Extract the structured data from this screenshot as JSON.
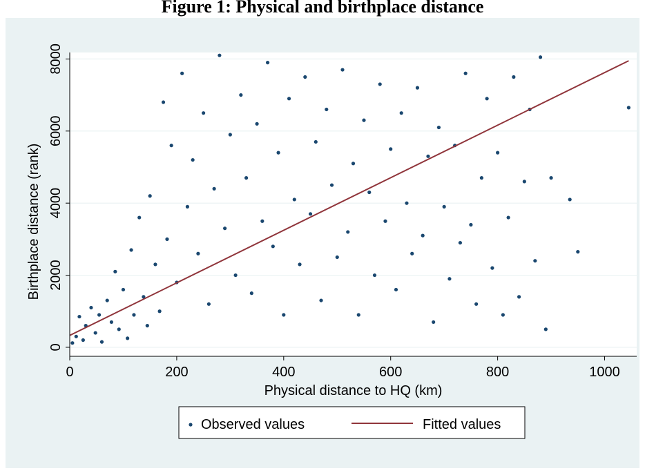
{
  "title": "Figure 1: Physical and birthplace distance",
  "chart_data": {
    "type": "scatter",
    "xlabel": "Physical distance to HQ (km)",
    "ylabel": "Birthplace distance (rank)",
    "xlim": [
      0,
      1060
    ],
    "ylim": [
      -250,
      8180
    ],
    "xticks": [
      0,
      200,
      400,
      600,
      800,
      1000
    ],
    "yticks": [
      0,
      2000,
      4000,
      6000,
      8000
    ],
    "x_tick_labels": [
      "0",
      "200",
      "400",
      "600",
      "800",
      "1000"
    ],
    "y_tick_labels": [
      "0",
      "2000",
      "4000",
      "6000",
      "8000"
    ],
    "grid": "horizontal",
    "legend_position": "bottom",
    "series": [
      {
        "name": "Observed values",
        "kind": "scatter",
        "color": "#1a476f",
        "note_points": "representative sample of a dense cloud of observations",
        "points": [
          [
            5,
            120
          ],
          [
            12,
            300
          ],
          [
            18,
            850
          ],
          [
            25,
            200
          ],
          [
            30,
            600
          ],
          [
            40,
            1100
          ],
          [
            48,
            400
          ],
          [
            55,
            900
          ],
          [
            60,
            150
          ],
          [
            70,
            1300
          ],
          [
            78,
            700
          ],
          [
            85,
            2100
          ],
          [
            92,
            500
          ],
          [
            100,
            1600
          ],
          [
            108,
            250
          ],
          [
            115,
            2700
          ],
          [
            120,
            900
          ],
          [
            130,
            3600
          ],
          [
            138,
            1400
          ],
          [
            145,
            600
          ],
          [
            150,
            4200
          ],
          [
            160,
            2300
          ],
          [
            168,
            1000
          ],
          [
            175,
            6800
          ],
          [
            182,
            3000
          ],
          [
            190,
            5600
          ],
          [
            200,
            1800
          ],
          [
            210,
            7600
          ],
          [
            220,
            3900
          ],
          [
            230,
            5200
          ],
          [
            240,
            2600
          ],
          [
            250,
            6500
          ],
          [
            260,
            1200
          ],
          [
            270,
            4400
          ],
          [
            280,
            8100
          ],
          [
            290,
            3300
          ],
          [
            300,
            5900
          ],
          [
            310,
            2000
          ],
          [
            320,
            7000
          ],
          [
            330,
            4700
          ],
          [
            340,
            1500
          ],
          [
            350,
            6200
          ],
          [
            360,
            3500
          ],
          [
            370,
            7900
          ],
          [
            380,
            2800
          ],
          [
            390,
            5400
          ],
          [
            400,
            900
          ],
          [
            410,
            6900
          ],
          [
            420,
            4100
          ],
          [
            430,
            2300
          ],
          [
            440,
            7500
          ],
          [
            450,
            3700
          ],
          [
            460,
            5700
          ],
          [
            470,
            1300
          ],
          [
            480,
            6600
          ],
          [
            490,
            4500
          ],
          [
            500,
            2500
          ],
          [
            510,
            7700
          ],
          [
            520,
            3200
          ],
          [
            530,
            5100
          ],
          [
            540,
            900
          ],
          [
            550,
            6300
          ],
          [
            560,
            4300
          ],
          [
            570,
            2000
          ],
          [
            580,
            7300
          ],
          [
            590,
            3500
          ],
          [
            600,
            5500
          ],
          [
            610,
            1600
          ],
          [
            620,
            6500
          ],
          [
            630,
            4000
          ],
          [
            640,
            2600
          ],
          [
            650,
            7200
          ],
          [
            660,
            3100
          ],
          [
            670,
            5300
          ],
          [
            680,
            700
          ],
          [
            690,
            6100
          ],
          [
            700,
            3900
          ],
          [
            710,
            1900
          ],
          [
            720,
            5600
          ],
          [
            730,
            2900
          ],
          [
            740,
            7600
          ],
          [
            750,
            3400
          ],
          [
            760,
            1200
          ],
          [
            770,
            4700
          ],
          [
            780,
            6900
          ],
          [
            790,
            2200
          ],
          [
            800,
            5400
          ],
          [
            810,
            900
          ],
          [
            820,
            3600
          ],
          [
            830,
            7500
          ],
          [
            840,
            1400
          ],
          [
            850,
            4600
          ],
          [
            860,
            6600
          ],
          [
            870,
            2400
          ],
          [
            880,
            8050
          ],
          [
            890,
            500
          ],
          [
            900,
            4700
          ],
          [
            935,
            4100
          ],
          [
            950,
            2650
          ],
          [
            1045,
            6650
          ]
        ]
      },
      {
        "name": "Fitted values",
        "kind": "line",
        "color": "#90353b",
        "x": [
          0,
          1045
        ],
        "y": [
          330,
          7950
        ]
      }
    ]
  }
}
